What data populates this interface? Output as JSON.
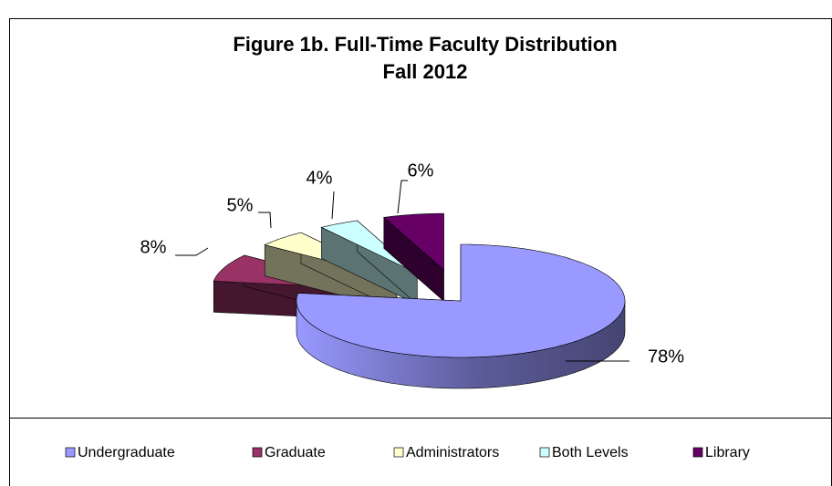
{
  "chart_data": {
    "type": "pie3d",
    "title": "Figure 1b. Full-Time Faculty Distribution",
    "subtitle": "Fall 2012",
    "categories": [
      "Undergraduate",
      "Graduate",
      "Administrators",
      "Both Levels",
      "Library"
    ],
    "values": [
      78,
      8,
      5,
      4,
      6
    ],
    "value_labels": [
      "78%",
      "8%",
      "5%",
      "4%",
      "6%"
    ],
    "colors": [
      "#9999ff",
      "#993366",
      "#ffffcc",
      "#ccffff",
      "#660066"
    ],
    "legend": "bottom"
  }
}
